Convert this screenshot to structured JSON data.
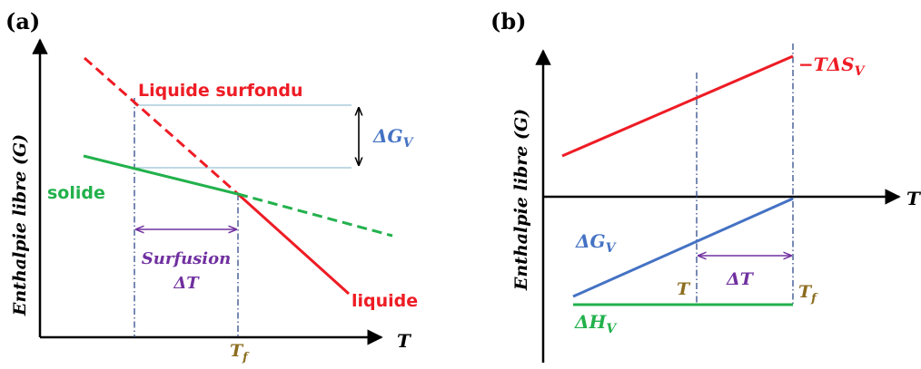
{
  "colors": {
    "red": "#ee1c25",
    "green": "#22b14c",
    "blue": "#4472c4",
    "purple": "#7030a0",
    "gold": "#8c6d1f",
    "black": "#000000",
    "guide": "#7fb3c8",
    "dashdot": "#2f4a8a"
  },
  "panel_a": {
    "tag": "(a)",
    "y_axis_label": "Enthalpie libre (G)",
    "x_axis_label": "T",
    "liquid_supercooled_label": "Liquide surfondu",
    "solid_label": "solide",
    "liquid_label": "liquide",
    "delta_g_label": "ΔG",
    "delta_g_sub": "V",
    "surfusion_label": "Surfusion",
    "delta_t_label": "ΔT",
    "tf_label": "T",
    "tf_sub": "f"
  },
  "panel_b": {
    "tag": "(b)",
    "y_axis_label": "Enthalpie libre (G)",
    "x_axis_label": "T",
    "minus_t_ds_label": "−TΔS",
    "minus_t_ds_sub": "V",
    "delta_g_label": "ΔG",
    "delta_g_sub": "V",
    "delta_h_label": "ΔH",
    "delta_h_sub": "V",
    "t_label": "T",
    "delta_t_label": "ΔT",
    "tf_label": "T",
    "tf_sub": "f"
  }
}
